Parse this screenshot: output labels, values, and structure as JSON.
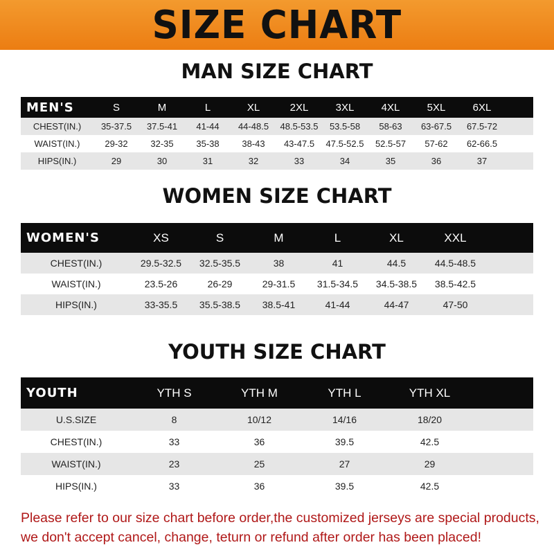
{
  "banner_title": "SIZE CHART",
  "colors": {
    "banner": "#ef8a1f",
    "header_row": "#0c0c0c",
    "alt_row": "#e6e6e6",
    "note": "#b01818"
  },
  "men": {
    "title": "MAN SIZE CHART",
    "header": [
      "MEN'S",
      "S",
      "M",
      "L",
      "XL",
      "2XL",
      "3XL",
      "4XL",
      "5XL",
      "6XL"
    ],
    "rows": [
      [
        "CHEST(IN.)",
        "35-37.5",
        "37.5-41",
        "41-44",
        "44-48.5",
        "48.5-53.5",
        "53.5-58",
        "58-63",
        "63-67.5",
        "67.5-72"
      ],
      [
        "WAIST(IN.)",
        "29-32",
        "32-35",
        "35-38",
        "38-43",
        "43-47.5",
        "47.5-52.5",
        "52.5-57",
        "57-62",
        "62-66.5"
      ],
      [
        "HIPS(IN.)",
        "29",
        "30",
        "31",
        "32",
        "33",
        "34",
        "35",
        "36",
        "37"
      ]
    ]
  },
  "women": {
    "title": "WOMEN SIZE CHART",
    "header": [
      "WOMEN'S",
      "XS",
      "S",
      "M",
      "L",
      "XL",
      "XXL"
    ],
    "rows": [
      [
        "CHEST(IN.)",
        "29.5-32.5",
        "32.5-35.5",
        "38",
        "41",
        "44.5",
        "44.5-48.5"
      ],
      [
        "WAIST(IN.)",
        "23.5-26",
        "26-29",
        "29-31.5",
        "31.5-34.5",
        "34.5-38.5",
        "38.5-42.5"
      ],
      [
        "HIPS(IN.)",
        "33-35.5",
        "35.5-38.5",
        "38.5-41",
        "41-44",
        "44-47",
        "47-50"
      ]
    ]
  },
  "youth": {
    "title": "YOUTH SIZE CHART",
    "header": [
      "YOUTH",
      "YTH S",
      "YTH M",
      "YTH L",
      "YTH XL"
    ],
    "rows": [
      [
        "U.S.SIZE",
        "8",
        "10/12",
        "14/16",
        "18/20"
      ],
      [
        "CHEST(IN.)",
        "33",
        "36",
        "39.5",
        "42.5"
      ],
      [
        "WAIST(IN.)",
        "23",
        "25",
        "27",
        "29"
      ],
      [
        "HIPS(IN.)",
        "33",
        "36",
        "39.5",
        "42.5"
      ]
    ]
  },
  "note": [
    "Please refer to our size chart before order,the customized jerseys are special products,",
    "we don't accept cancel, change, teturn or refund after order has been placed!"
  ]
}
